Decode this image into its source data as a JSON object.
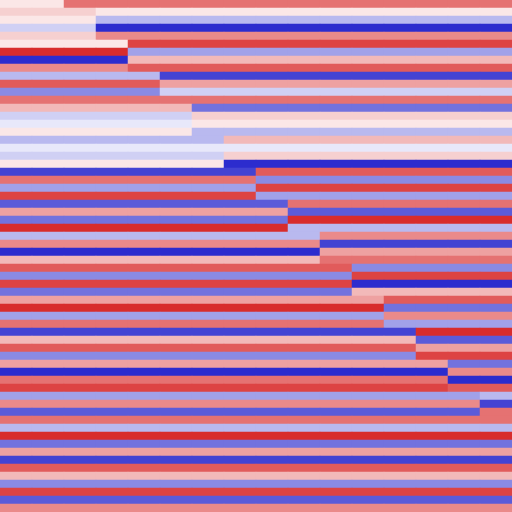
{
  "chart_data": {
    "type": "heatmap",
    "tick_labels": false,
    "grid": false,
    "color_range": [
      -1,
      1
    ],
    "cells": [
      [
        0.1,
        0.1,
        0.6,
        0.6,
        0.6,
        0.6,
        0.6,
        0.6,
        0.6,
        0.6,
        0.6,
        0.6,
        0.6,
        0.6,
        0.6,
        0.6
      ],
      [
        0.2,
        0.2,
        0.2,
        0.1,
        0.1,
        0.1,
        0.1,
        0.1,
        0.1,
        0.1,
        0.1,
        0.1,
        0.1,
        0.1,
        0.1,
        0.1
      ],
      [
        0.1,
        0.1,
        0.1,
        -0.3,
        -0.3,
        -0.3,
        -0.3,
        -0.3,
        -0.3,
        -0.3,
        -0.3,
        -0.3,
        -0.3,
        -0.3,
        -0.3,
        -0.3
      ],
      [
        -0.2,
        -0.2,
        -0.2,
        -0.9,
        -0.9,
        -0.9,
        -0.9,
        -0.9,
        -0.9,
        -0.9,
        -0.9,
        -0.9,
        -0.9,
        -0.9,
        -0.9,
        -0.9
      ],
      [
        0.2,
        0.2,
        0.2,
        0.5,
        0.5,
        0.5,
        0.5,
        0.5,
        0.5,
        0.5,
        0.5,
        0.5,
        0.5,
        0.5,
        0.5,
        0.5
      ],
      [
        0.1,
        0.1,
        0.1,
        0.1,
        0.8,
        0.8,
        0.8,
        0.8,
        0.8,
        0.8,
        0.8,
        0.8,
        0.8,
        0.8,
        0.8,
        0.8
      ],
      [
        0.9,
        0.9,
        0.9,
        0.9,
        -0.4,
        -0.4,
        -0.4,
        -0.4,
        -0.4,
        -0.4,
        -0.4,
        -0.4,
        -0.4,
        -0.4,
        -0.4,
        -0.4
      ],
      [
        -0.9,
        -0.9,
        -0.9,
        -0.9,
        0.3,
        0.3,
        0.3,
        0.3,
        0.3,
        0.3,
        0.3,
        0.3,
        0.3,
        0.3,
        0.3,
        0.3
      ],
      [
        0.5,
        0.5,
        0.5,
        0.5,
        0.7,
        0.7,
        0.7,
        0.7,
        0.7,
        0.7,
        0.7,
        0.7,
        0.7,
        0.7,
        0.7,
        0.7
      ],
      [
        -0.3,
        -0.3,
        -0.3,
        -0.3,
        -0.3,
        -0.8,
        -0.8,
        -0.8,
        -0.8,
        -0.8,
        -0.8,
        -0.8,
        -0.8,
        -0.8,
        -0.8,
        -0.8
      ],
      [
        0.7,
        0.7,
        0.7,
        0.7,
        0.7,
        0.4,
        0.4,
        0.4,
        0.4,
        0.4,
        0.4,
        0.4,
        0.4,
        0.4,
        0.4,
        0.4
      ],
      [
        -0.5,
        -0.5,
        -0.5,
        -0.5,
        -0.5,
        -0.2,
        -0.2,
        -0.2,
        -0.2,
        -0.2,
        -0.2,
        -0.2,
        -0.2,
        -0.2,
        -0.2,
        -0.2
      ],
      [
        0.6,
        0.6,
        0.6,
        0.6,
        0.6,
        0.6,
        0.6,
        0.6,
        0.6,
        0.6,
        0.6,
        0.6,
        0.6,
        0.6,
        0.6,
        0.6
      ],
      [
        0.3,
        0.3,
        0.3,
        0.3,
        0.3,
        0.3,
        -0.6,
        -0.6,
        -0.6,
        -0.6,
        -0.6,
        -0.6,
        -0.6,
        -0.6,
        -0.6,
        -0.6
      ],
      [
        -0.2,
        -0.2,
        -0.2,
        -0.2,
        -0.2,
        -0.2,
        0.2,
        0.2,
        0.2,
        0.2,
        0.2,
        0.2,
        0.2,
        0.2,
        0.2,
        0.2
      ],
      [
        -0.1,
        -0.1,
        -0.1,
        -0.1,
        -0.1,
        -0.1,
        0.1,
        0.1,
        0.1,
        0.1,
        0.1,
        0.1,
        0.1,
        0.1,
        0.1,
        0.1
      ],
      [
        0.1,
        0.1,
        0.1,
        0.1,
        0.1,
        0.1,
        -0.3,
        -0.3,
        -0.3,
        -0.3,
        -0.3,
        -0.3,
        -0.3,
        -0.3,
        -0.3,
        -0.3
      ],
      [
        -0.3,
        -0.3,
        -0.3,
        -0.3,
        -0.3,
        -0.3,
        -0.3,
        0.3,
        0.3,
        0.3,
        0.3,
        0.3,
        0.3,
        0.3,
        0.3,
        0.3
      ],
      [
        -0.1,
        -0.1,
        -0.1,
        -0.1,
        -0.1,
        -0.1,
        -0.1,
        -0.1,
        -0.1,
        -0.1,
        -0.1,
        -0.1,
        -0.1,
        -0.1,
        -0.1,
        -0.1
      ],
      [
        -0.2,
        -0.2,
        -0.2,
        -0.2,
        -0.2,
        -0.2,
        -0.2,
        0.2,
        0.2,
        0.2,
        0.2,
        0.2,
        0.2,
        0.2,
        0.2,
        0.2
      ],
      [
        0.1,
        0.1,
        0.1,
        0.1,
        0.1,
        0.1,
        0.1,
        -0.9,
        -0.9,
        -0.9,
        -0.9,
        -0.9,
        -0.9,
        -0.9,
        -0.9,
        -0.9
      ],
      [
        -0.8,
        -0.8,
        -0.8,
        -0.8,
        -0.8,
        -0.8,
        -0.8,
        -0.8,
        0.7,
        0.7,
        0.7,
        0.7,
        0.7,
        0.7,
        0.7,
        0.7
      ],
      [
        0.6,
        0.6,
        0.6,
        0.6,
        0.6,
        0.6,
        0.6,
        0.6,
        -0.5,
        -0.5,
        -0.5,
        -0.5,
        -0.5,
        -0.5,
        -0.5,
        -0.5
      ],
      [
        -0.4,
        -0.4,
        -0.4,
        -0.4,
        -0.4,
        -0.4,
        -0.4,
        -0.4,
        0.8,
        0.8,
        0.8,
        0.8,
        0.8,
        0.8,
        0.8,
        0.8
      ],
      [
        0.8,
        0.8,
        0.8,
        0.8,
        0.8,
        0.8,
        0.8,
        0.8,
        -0.4,
        -0.4,
        -0.4,
        -0.4,
        -0.4,
        -0.4,
        -0.4,
        -0.4
      ],
      [
        -0.7,
        -0.7,
        -0.7,
        -0.7,
        -0.7,
        -0.7,
        -0.7,
        -0.7,
        -0.7,
        0.6,
        0.6,
        0.6,
        0.6,
        0.6,
        0.6,
        0.6
      ],
      [
        0.4,
        0.4,
        0.4,
        0.4,
        0.4,
        0.4,
        0.4,
        0.4,
        0.4,
        -0.7,
        -0.7,
        -0.7,
        -0.7,
        -0.7,
        -0.7,
        -0.7
      ],
      [
        -0.6,
        -0.6,
        -0.6,
        -0.6,
        -0.6,
        -0.6,
        -0.6,
        -0.6,
        -0.6,
        0.9,
        0.9,
        0.9,
        0.9,
        0.9,
        0.9,
        0.9
      ],
      [
        0.9,
        0.9,
        0.9,
        0.9,
        0.9,
        0.9,
        0.9,
        0.9,
        0.9,
        -0.3,
        -0.3,
        -0.3,
        -0.3,
        -0.3,
        -0.3,
        -0.3
      ],
      [
        -0.3,
        -0.3,
        -0.3,
        -0.3,
        -0.3,
        -0.3,
        -0.3,
        -0.3,
        -0.3,
        -0.3,
        0.5,
        0.5,
        0.5,
        0.5,
        0.5,
        0.5
      ],
      [
        0.5,
        0.5,
        0.5,
        0.5,
        0.5,
        0.5,
        0.5,
        0.5,
        0.5,
        0.5,
        -0.8,
        -0.8,
        -0.8,
        -0.8,
        -0.8,
        -0.8
      ],
      [
        -0.9,
        -0.9,
        -0.9,
        -0.9,
        -0.9,
        -0.9,
        -0.9,
        -0.9,
        -0.9,
        -0.9,
        0.4,
        0.4,
        0.4,
        0.4,
        0.4,
        0.4
      ],
      [
        0.3,
        0.3,
        0.3,
        0.3,
        0.3,
        0.3,
        0.3,
        0.3,
        0.3,
        0.3,
        0.6,
        0.6,
        0.6,
        0.6,
        0.6,
        0.6
      ],
      [
        0.7,
        0.7,
        0.7,
        0.7,
        0.7,
        0.7,
        0.7,
        0.7,
        0.7,
        0.7,
        0.7,
        -0.5,
        -0.5,
        -0.5,
        -0.5,
        -0.5
      ],
      [
        -0.5,
        -0.5,
        -0.5,
        -0.5,
        -0.5,
        -0.5,
        -0.5,
        -0.5,
        -0.5,
        -0.5,
        -0.5,
        0.8,
        0.8,
        0.8,
        0.8,
        0.8
      ],
      [
        0.8,
        0.8,
        0.8,
        0.8,
        0.8,
        0.8,
        0.8,
        0.8,
        0.8,
        0.8,
        0.8,
        -0.9,
        -0.9,
        -0.9,
        -0.9,
        -0.9
      ],
      [
        -0.6,
        -0.6,
        -0.6,
        -0.6,
        -0.6,
        -0.6,
        -0.6,
        -0.6,
        -0.6,
        -0.6,
        -0.6,
        0.3,
        0.3,
        0.3,
        0.3,
        0.3
      ],
      [
        0.4,
        0.4,
        0.4,
        0.4,
        0.4,
        0.4,
        0.4,
        0.4,
        0.4,
        0.4,
        0.4,
        0.4,
        0.7,
        0.7,
        0.7,
        0.7
      ],
      [
        0.9,
        0.9,
        0.9,
        0.9,
        0.9,
        0.9,
        0.9,
        0.9,
        0.9,
        0.9,
        0.9,
        0.9,
        -0.6,
        -0.6,
        -0.6,
        -0.6
      ],
      [
        -0.4,
        -0.4,
        -0.4,
        -0.4,
        -0.4,
        -0.4,
        -0.4,
        -0.4,
        -0.4,
        -0.4,
        -0.4,
        -0.4,
        0.5,
        0.5,
        0.5,
        0.5
      ],
      [
        0.6,
        0.6,
        0.6,
        0.6,
        0.6,
        0.6,
        0.6,
        0.6,
        0.6,
        0.6,
        0.6,
        0.6,
        -0.4,
        -0.4,
        -0.4,
        -0.4
      ],
      [
        -0.8,
        -0.8,
        -0.8,
        -0.8,
        -0.8,
        -0.8,
        -0.8,
        -0.8,
        -0.8,
        -0.8,
        -0.8,
        -0.8,
        -0.8,
        0.9,
        0.9,
        0.9
      ],
      [
        0.3,
        0.3,
        0.3,
        0.3,
        0.3,
        0.3,
        0.3,
        0.3,
        0.3,
        0.3,
        0.3,
        0.3,
        0.3,
        -0.7,
        -0.7,
        -0.7
      ],
      [
        0.7,
        0.7,
        0.7,
        0.7,
        0.7,
        0.7,
        0.7,
        0.7,
        0.7,
        0.7,
        0.7,
        0.7,
        0.7,
        0.4,
        0.4,
        0.4
      ],
      [
        -0.5,
        -0.5,
        -0.5,
        -0.5,
        -0.5,
        -0.5,
        -0.5,
        -0.5,
        -0.5,
        -0.5,
        -0.5,
        -0.5,
        -0.5,
        0.8,
        0.8,
        0.8
      ],
      [
        0.4,
        0.4,
        0.4,
        0.4,
        0.4,
        0.4,
        0.4,
        0.4,
        0.4,
        0.4,
        0.4,
        0.4,
        0.4,
        0.4,
        -0.6,
        -0.6
      ],
      [
        -0.9,
        -0.9,
        -0.9,
        -0.9,
        -0.9,
        -0.9,
        -0.9,
        -0.9,
        -0.9,
        -0.9,
        -0.9,
        -0.9,
        -0.9,
        -0.9,
        0.5,
        0.5
      ],
      [
        0.6,
        0.6,
        0.6,
        0.6,
        0.6,
        0.6,
        0.6,
        0.6,
        0.6,
        0.6,
        0.6,
        0.6,
        0.6,
        0.6,
        -0.9,
        -0.9
      ],
      [
        0.8,
        0.8,
        0.8,
        0.8,
        0.8,
        0.8,
        0.8,
        0.8,
        0.8,
        0.8,
        0.8,
        0.8,
        0.8,
        0.8,
        0.7,
        0.7
      ],
      [
        -0.4,
        -0.4,
        -0.4,
        -0.4,
        -0.4,
        -0.4,
        -0.4,
        -0.4,
        -0.4,
        -0.4,
        -0.4,
        -0.4,
        -0.4,
        -0.4,
        -0.4,
        -0.3
      ],
      [
        0.5,
        0.5,
        0.5,
        0.5,
        0.5,
        0.5,
        0.5,
        0.5,
        0.5,
        0.5,
        0.5,
        0.5,
        0.5,
        0.5,
        0.5,
        -0.8
      ],
      [
        -0.7,
        -0.7,
        -0.7,
        -0.7,
        -0.7,
        -0.7,
        -0.7,
        -0.7,
        -0.7,
        -0.7,
        -0.7,
        -0.7,
        -0.7,
        -0.7,
        -0.7,
        0.6
      ],
      [
        0.6,
        0.6,
        0.6,
        0.6,
        0.6,
        0.6,
        0.6,
        0.6,
        0.6,
        0.6,
        0.6,
        0.6,
        0.6,
        0.6,
        0.6,
        0.6
      ],
      [
        -0.3,
        -0.3,
        -0.3,
        -0.3,
        -0.3,
        -0.3,
        -0.3,
        -0.3,
        -0.3,
        -0.3,
        -0.3,
        -0.3,
        -0.3,
        -0.3,
        -0.3,
        -0.3
      ],
      [
        0.9,
        0.9,
        0.9,
        0.9,
        0.9,
        0.9,
        0.9,
        0.9,
        0.9,
        0.9,
        0.9,
        0.9,
        0.9,
        0.9,
        0.9,
        0.9
      ],
      [
        -0.6,
        -0.6,
        -0.6,
        -0.6,
        -0.6,
        -0.6,
        -0.6,
        -0.6,
        -0.6,
        -0.6,
        -0.6,
        -0.6,
        -0.6,
        -0.6,
        -0.6,
        -0.6
      ],
      [
        0.4,
        0.4,
        0.4,
        0.4,
        0.4,
        0.4,
        0.4,
        0.4,
        0.4,
        0.4,
        0.4,
        0.4,
        0.4,
        0.4,
        0.4,
        0.4
      ],
      [
        -0.8,
        -0.8,
        -0.8,
        -0.8,
        -0.8,
        -0.8,
        -0.8,
        -0.8,
        -0.8,
        -0.8,
        -0.8,
        -0.8,
        -0.8,
        -0.8,
        -0.8,
        -0.8
      ],
      [
        0.7,
        0.7,
        0.7,
        0.7,
        0.7,
        0.7,
        0.7,
        0.7,
        0.7,
        0.7,
        0.7,
        0.7,
        0.7,
        0.7,
        0.7,
        0.7
      ],
      [
        0.3,
        0.3,
        0.3,
        0.3,
        0.3,
        0.3,
        0.3,
        0.3,
        0.3,
        0.3,
        0.3,
        0.3,
        0.3,
        0.3,
        0.3,
        0.3
      ],
      [
        -0.5,
        -0.5,
        -0.5,
        -0.5,
        -0.5,
        -0.5,
        -0.5,
        -0.5,
        -0.5,
        -0.5,
        -0.5,
        -0.5,
        -0.5,
        -0.5,
        -0.5,
        -0.5
      ],
      [
        0.8,
        0.8,
        0.8,
        0.8,
        0.8,
        0.8,
        0.8,
        0.8,
        0.8,
        0.8,
        0.8,
        0.8,
        0.8,
        0.8,
        0.8,
        0.8
      ],
      [
        -0.7,
        -0.7,
        -0.7,
        -0.7,
        -0.7,
        -0.7,
        -0.7,
        -0.7,
        -0.7,
        -0.7,
        -0.7,
        -0.7,
        -0.7,
        -0.7,
        -0.7,
        -0.7
      ],
      [
        0.5,
        0.5,
        0.5,
        0.5,
        0.5,
        0.5,
        0.5,
        0.5,
        0.5,
        0.5,
        0.5,
        0.5,
        0.5,
        0.5,
        0.5,
        0.5
      ]
    ]
  }
}
